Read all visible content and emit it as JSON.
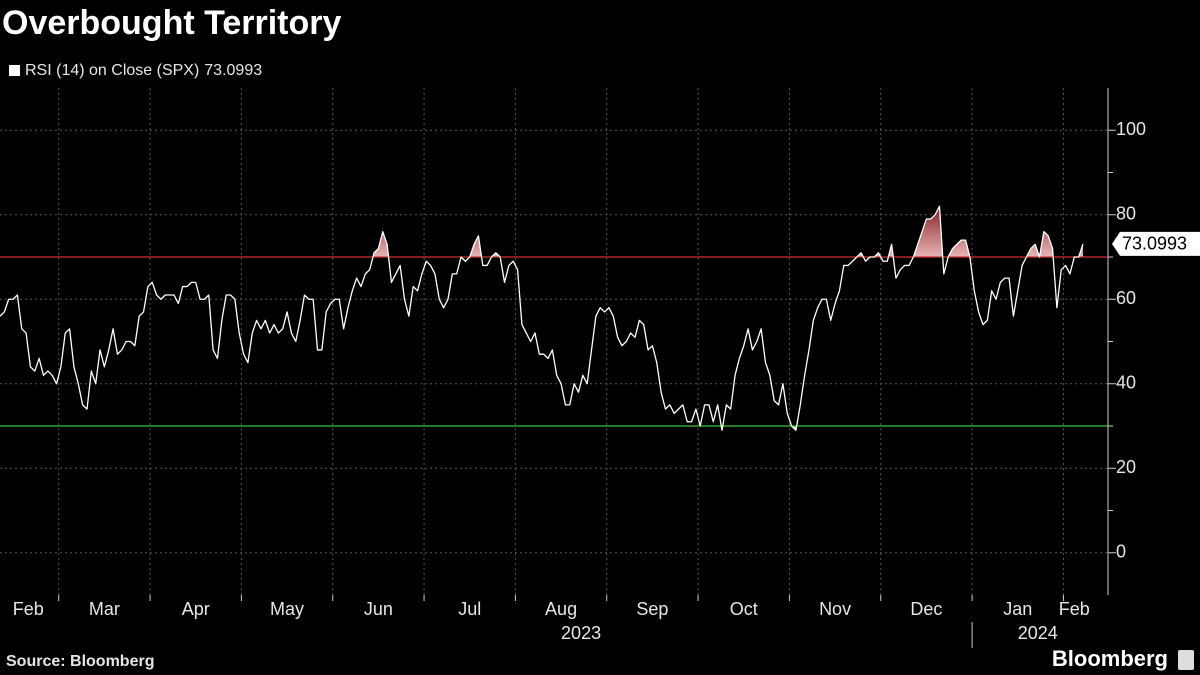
{
  "chart_data": {
    "type": "line",
    "title": "Overbought Territory",
    "source": "Source: Bloomberg",
    "logo": "Bloomberg",
    "categories": [
      "Feb",
      "Mar",
      "Apr",
      "May",
      "Jun",
      "Jul",
      "Aug",
      "Sep",
      "Oct",
      "Nov",
      "Dec",
      "Jan",
      "Feb"
    ],
    "years": [
      null,
      null,
      null,
      null,
      null,
      null,
      "2023",
      null,
      null,
      null,
      null,
      "2024",
      null
    ],
    "series": [
      {
        "name": "RSI (14)  on Close (SPX)",
        "color": "#ffffff",
        "values": [
          [
            56,
            57,
            60,
            60,
            61,
            53,
            52,
            44,
            43,
            46,
            42,
            43,
            42,
            40
          ],
          [
            44,
            52,
            53,
            44,
            40,
            35,
            34,
            43,
            40,
            48,
            44,
            48,
            53,
            47,
            48,
            50,
            50,
            49,
            56,
            57,
            63
          ],
          [
            64,
            61,
            60,
            61,
            61,
            61,
            59,
            63,
            63,
            64,
            64,
            60,
            60,
            61,
            48,
            46,
            55,
            61,
            61,
            60,
            52
          ],
          [
            47,
            45,
            52,
            55,
            53,
            55,
            52,
            54,
            52,
            53,
            57,
            52,
            50,
            55,
            61,
            60,
            60,
            48,
            48,
            57,
            59
          ],
          [
            60,
            60,
            53,
            58,
            62,
            65,
            63,
            66,
            67,
            71,
            72,
            76,
            73,
            64,
            66,
            68,
            60,
            56,
            63,
            62,
            66
          ],
          [
            69,
            68,
            66,
            60,
            58,
            60,
            66,
            66,
            70,
            69,
            70,
            73,
            75,
            68,
            68,
            70,
            71,
            70,
            64,
            68,
            69
          ],
          [
            67,
            54,
            52,
            50,
            52,
            47,
            47,
            46,
            48,
            42,
            40,
            35,
            35,
            40,
            38,
            42,
            40,
            48,
            56,
            58,
            57
          ],
          [
            58,
            56,
            51,
            49,
            50,
            52,
            51,
            55,
            54,
            48,
            49,
            45,
            38,
            34,
            35,
            33,
            34,
            35,
            31,
            31,
            34
          ],
          [
            30,
            35,
            35,
            31,
            35,
            29,
            35,
            34,
            42,
            46,
            49,
            53,
            48,
            50,
            53,
            45,
            42,
            36,
            35,
            40,
            33
          ],
          [
            30,
            29,
            35,
            42,
            48,
            55,
            58,
            60,
            60,
            55,
            59,
            62,
            68,
            68,
            69,
            70,
            71,
            69,
            70,
            70,
            71
          ],
          [
            69,
            69,
            73,
            65,
            67,
            68,
            68,
            70,
            73,
            76,
            79,
            79,
            80,
            82,
            66,
            70,
            72,
            73,
            74,
            74,
            70
          ],
          [
            62,
            57,
            54,
            55,
            62,
            60,
            64,
            65,
            65,
            56,
            62,
            68,
            70,
            72,
            73,
            70,
            76,
            75,
            72,
            58,
            67
          ],
          [
            68,
            66,
            70,
            70,
            73.0993
          ]
        ]
      }
    ],
    "reference_lines": [
      {
        "value": 70,
        "color": "#d0312f"
      },
      {
        "value": 30,
        "color": "#3cc43c"
      }
    ],
    "ylim": [
      -10,
      110
    ],
    "yticks": [
      0,
      20,
      40,
      60,
      80,
      100
    ],
    "grid": true
  }
}
